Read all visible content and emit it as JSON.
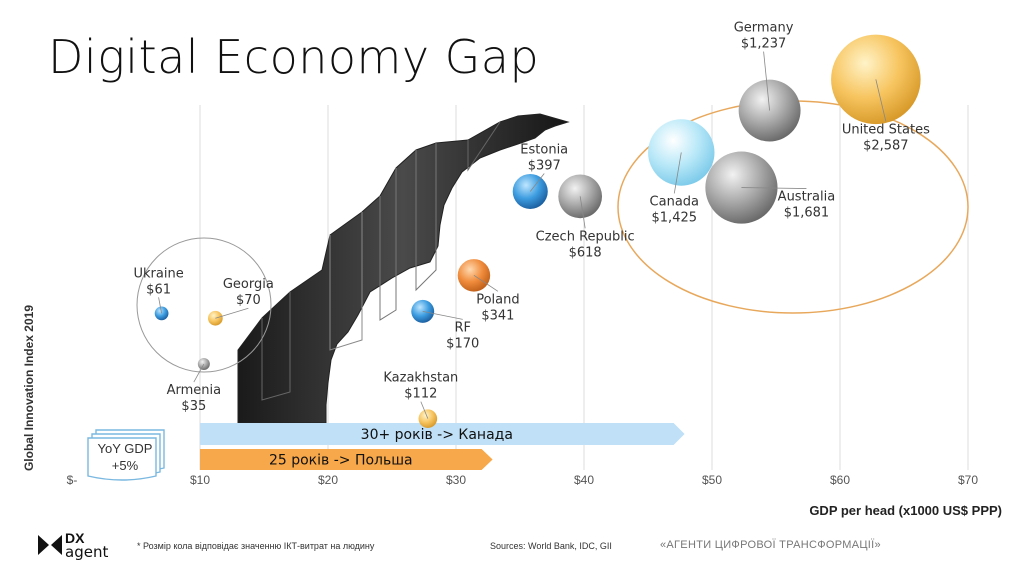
{
  "title": "Digital Economy Gap",
  "ylabel": "Global Innovation Index 2019",
  "xlabel": "GDP per head (x1000 US$ PPP)",
  "yoy": {
    "line1": "YoY GDP",
    "line2": "+5%"
  },
  "arrows": [
    {
      "label": "30+ років -> Канада",
      "color": "#bfe0f7",
      "from": 10,
      "to": 47
    },
    {
      "label": "25 років -> Польша",
      "color": "#f7a84a",
      "from": 10,
      "to": 32
    }
  ],
  "footnote": "* Розмір кола відповідає значенню ІКТ-витрат на людину",
  "sources": "Sources: World Bank, IDC, GII",
  "tagline": "«АГЕНТИ ЦИФРОВОЇ ТРАНСФОРМАЦІЇ»",
  "logo": {
    "line1": "DX",
    "line2": "agent"
  },
  "colors": {
    "blue": "#3d9de0",
    "lightblue": "#b8e8f8",
    "gray": "#9a9a9a",
    "orange": "#f08c3c",
    "yellow": "#f7c560",
    "ellipse": "#e8a85c"
  },
  "chart_data": {
    "type": "scatter",
    "xlim": [
      0,
      70
    ],
    "ticks": [
      "$-",
      "$10",
      "$20",
      "$30",
      "$40",
      "$50",
      "$60",
      "$70"
    ],
    "tick_values": [
      0,
      10,
      20,
      30,
      40,
      50,
      60,
      70
    ],
    "points": [
      {
        "name": "Ukraine",
        "value": "$61",
        "x": 7.0,
        "y": 37.4,
        "color": "blue"
      },
      {
        "name": "Georgia",
        "value": "$70",
        "x": 11.2,
        "y": 36.9,
        "color": "yellow"
      },
      {
        "name": "Armenia",
        "value": "$35",
        "x": 10.3,
        "y": 32.2,
        "color": "gray"
      },
      {
        "name": "RF",
        "value": "$170",
        "x": 27.4,
        "y": 37.6,
        "color": "blue"
      },
      {
        "name": "Kazakhstan",
        "value": "$112",
        "x": 27.8,
        "y": 26.6,
        "color": "yellow"
      },
      {
        "name": "Poland",
        "value": "$341",
        "x": 31.4,
        "y": 41.3,
        "color": "orange"
      },
      {
        "name": "Estonia",
        "value": "$397",
        "x": 35.8,
        "y": 49.9,
        "color": "blue"
      },
      {
        "name": "Czech Republic",
        "value": "$618",
        "x": 39.7,
        "y": 49.4,
        "color": "gray"
      },
      {
        "name": "Canada",
        "value": "$1,425",
        "x": 47.6,
        "y": 53.9,
        "color": "lightblue"
      },
      {
        "name": "Australia",
        "value": "$1,681",
        "x": 52.3,
        "y": 50.3,
        "color": "gray"
      },
      {
        "name": "Germany",
        "value": "$1,237",
        "x": 54.5,
        "y": 58.2,
        "color": "gray"
      },
      {
        "name": "United States",
        "value": "$2,587",
        "x": 62.8,
        "y": 61.4,
        "color": "yellow"
      }
    ]
  }
}
